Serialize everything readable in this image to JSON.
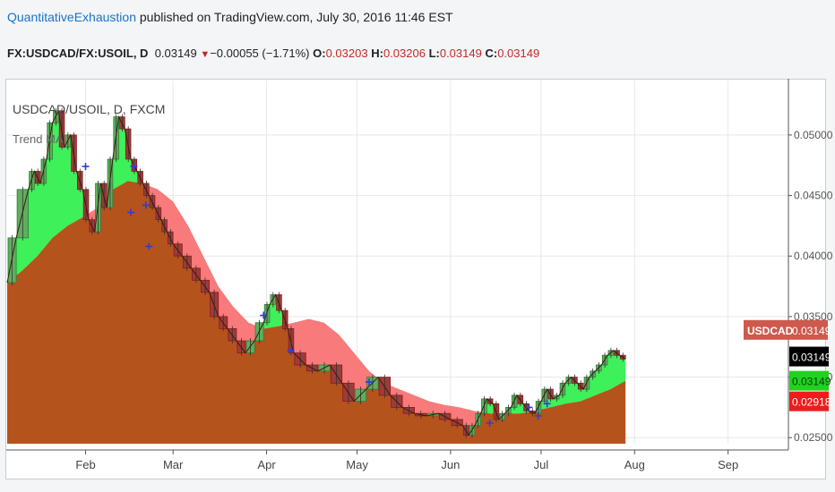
{
  "header": {
    "author": "QuantitativeExhaustion",
    "published_text": " published on TradingView.com, July 30, 2016 11:46 EST"
  },
  "ohlc_bar": {
    "symbol": "FX:USDCAD/FX:USOIL, D",
    "last": "0.03149",
    "change": "−0.00055 (−1.71%)",
    "o_label": "O:",
    "o": "0.03203",
    "h_label": "H:",
    "h": "0.03206",
    "l_label": "L:",
    "l": "0.03149",
    "c_label": "C:",
    "c": "0.03149"
  },
  "legend": {
    "symbol_line": "USDCAD/USOIL, D, FXCM",
    "study_label": "Trend MA"
  },
  "colors": {
    "area_brown": "#b5531d",
    "above_green": "#3ef05a",
    "below_red": "#f87a7a",
    "candle_up": "#2e7d32",
    "candle_down": "#8b1a1a",
    "cross": "#2b3fd6",
    "tag_symbol": "#cd5a4d",
    "tag_last": "#000000",
    "tag_green": "#1fd31f",
    "tag_red": "#ee1c1c"
  },
  "chart_data": {
    "type": "line",
    "series_name": "USDCAD/USOIL",
    "x_labels": [
      "Feb",
      "Mar",
      "Apr",
      "May",
      "Jun",
      "Jul",
      "Aug",
      "Sep"
    ],
    "x_label_days": [
      31,
      60,
      91,
      121,
      152,
      182,
      213,
      244
    ],
    "ylim": [
      0.0245,
      0.0545
    ],
    "y_ticks": [
      "0.02500",
      "0.03000",
      "0.03500",
      "0.04000",
      "0.04500",
      "0.05000"
    ],
    "x_start_day": 5,
    "x_end_day": 264,
    "price_points": [
      [
        5,
        0.0378
      ],
      [
        8,
        0.0415
      ],
      [
        12,
        0.0455
      ],
      [
        14,
        0.047
      ],
      [
        16,
        0.046
      ],
      [
        18,
        0.048
      ],
      [
        20,
        0.051
      ],
      [
        22,
        0.052
      ],
      [
        24,
        0.049
      ],
      [
        26,
        0.05
      ],
      [
        28,
        0.047
      ],
      [
        30,
        0.0455
      ],
      [
        32,
        0.043
      ],
      [
        34,
        0.042
      ],
      [
        36,
        0.046
      ],
      [
        38,
        0.044
      ],
      [
        40,
        0.048
      ],
      [
        42,
        0.0515
      ],
      [
        44,
        0.0505
      ],
      [
        46,
        0.048
      ],
      [
        48,
        0.047
      ],
      [
        50,
        0.046
      ],
      [
        52,
        0.045
      ],
      [
        54,
        0.044
      ],
      [
        56,
        0.043
      ],
      [
        58,
        0.042
      ],
      [
        60,
        0.041
      ],
      [
        63,
        0.04
      ],
      [
        66,
        0.039
      ],
      [
        69,
        0.038
      ],
      [
        72,
        0.037
      ],
      [
        75,
        0.035
      ],
      [
        78,
        0.034
      ],
      [
        81,
        0.033
      ],
      [
        84,
        0.032
      ],
      [
        87,
        0.033
      ],
      [
        90,
        0.0345
      ],
      [
        92,
        0.036
      ],
      [
        94,
        0.0368
      ],
      [
        96,
        0.0355
      ],
      [
        98,
        0.034
      ],
      [
        100,
        0.032
      ],
      [
        104,
        0.031
      ],
      [
        108,
        0.0305
      ],
      [
        112,
        0.031
      ],
      [
        116,
        0.0295
      ],
      [
        120,
        0.028
      ],
      [
        124,
        0.029
      ],
      [
        128,
        0.03
      ],
      [
        132,
        0.0285
      ],
      [
        136,
        0.0275
      ],
      [
        140,
        0.027
      ],
      [
        144,
        0.0268
      ],
      [
        148,
        0.027
      ],
      [
        152,
        0.0265
      ],
      [
        156,
        0.026
      ],
      [
        158,
        0.0252
      ],
      [
        160,
        0.026
      ],
      [
        162,
        0.027
      ],
      [
        164,
        0.0282
      ],
      [
        166,
        0.0278
      ],
      [
        168,
        0.0265
      ],
      [
        170,
        0.027
      ],
      [
        172,
        0.0275
      ],
      [
        174,
        0.0285
      ],
      [
        176,
        0.0278
      ],
      [
        178,
        0.0272
      ],
      [
        180,
        0.027
      ],
      [
        182,
        0.028
      ],
      [
        184,
        0.029
      ],
      [
        186,
        0.0282
      ],
      [
        188,
        0.0285
      ],
      [
        190,
        0.0295
      ],
      [
        192,
        0.03
      ],
      [
        194,
        0.0295
      ],
      [
        196,
        0.029
      ],
      [
        198,
        0.03
      ],
      [
        200,
        0.0305
      ],
      [
        202,
        0.031
      ],
      [
        204,
        0.0318
      ],
      [
        206,
        0.0322
      ],
      [
        208,
        0.0318
      ],
      [
        210,
        0.0315
      ]
    ],
    "ma_points": [
      [
        5,
        0.0378
      ],
      [
        10,
        0.0388
      ],
      [
        15,
        0.04
      ],
      [
        20,
        0.0415
      ],
      [
        25,
        0.0425
      ],
      [
        30,
        0.0432
      ],
      [
        35,
        0.044
      ],
      [
        40,
        0.0455
      ],
      [
        45,
        0.0462
      ],
      [
        50,
        0.046
      ],
      [
        55,
        0.0455
      ],
      [
        60,
        0.0445
      ],
      [
        65,
        0.0425
      ],
      [
        70,
        0.04
      ],
      [
        75,
        0.0375
      ],
      [
        80,
        0.0358
      ],
      [
        85,
        0.0345
      ],
      [
        90,
        0.034
      ],
      [
        95,
        0.0342
      ],
      [
        100,
        0.0345
      ],
      [
        105,
        0.0348
      ],
      [
        110,
        0.0345
      ],
      [
        115,
        0.0335
      ],
      [
        120,
        0.032
      ],
      [
        125,
        0.0305
      ],
      [
        130,
        0.0295
      ],
      [
        135,
        0.029
      ],
      [
        140,
        0.0285
      ],
      [
        145,
        0.028
      ],
      [
        150,
        0.0277
      ],
      [
        155,
        0.0275
      ],
      [
        160,
        0.0272
      ],
      [
        165,
        0.027
      ],
      [
        170,
        0.027
      ],
      [
        175,
        0.027
      ],
      [
        180,
        0.0272
      ],
      [
        185,
        0.0275
      ],
      [
        190,
        0.0278
      ],
      [
        195,
        0.028
      ],
      [
        200,
        0.0285
      ],
      [
        205,
        0.029
      ],
      [
        210,
        0.0297
      ]
    ],
    "cross_markers": [
      [
        31,
        0.0474
      ],
      [
        47,
        0.0474
      ],
      [
        46,
        0.0436
      ],
      [
        51,
        0.0442
      ],
      [
        52,
        0.0408
      ],
      [
        90,
        0.0351
      ],
      [
        99,
        0.0322
      ],
      [
        125,
        0.0296
      ],
      [
        165,
        0.0262
      ],
      [
        178,
        0.0275
      ],
      [
        181,
        0.0268
      ],
      [
        184,
        0.0278
      ]
    ],
    "price_scale_tags": [
      {
        "label": "USDCAD",
        "value": "0.03149",
        "kind": "symbol",
        "y": 0.0339
      },
      {
        "label": "",
        "value": "0.03149",
        "kind": "last",
        "y": 0.0317
      },
      {
        "label": "",
        "value": "0.03149",
        "kind": "green",
        "y": 0.0297
      },
      {
        "label": "",
        "value": "0.02918",
        "kind": "red",
        "y": 0.028
      }
    ]
  }
}
